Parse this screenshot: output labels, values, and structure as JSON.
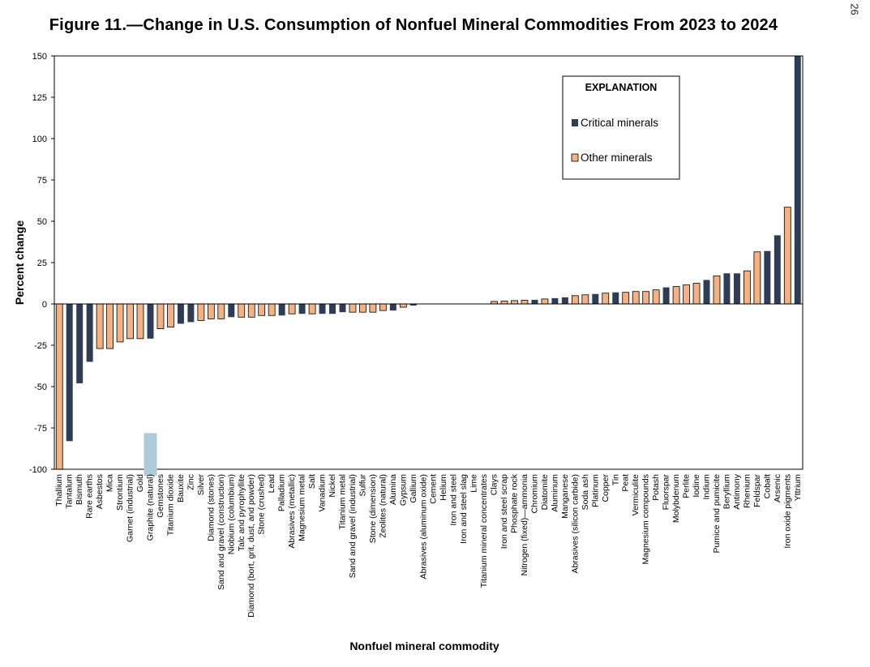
{
  "page_number": "26",
  "chart_data": {
    "type": "bar",
    "title": "Figure 11.—Change in U.S. Consumption of Nonfuel Mineral Commodities From 2023 to 2024",
    "xlabel": "Nonfuel mineral commodity",
    "ylabel": "Percent change",
    "ylim": [
      -100,
      150
    ],
    "yticks": [
      150,
      125,
      100,
      75,
      50,
      25,
      0,
      -25,
      -50,
      -75,
      -100
    ],
    "ytick_labels": [
      "150",
      "125",
      "100",
      "75",
      "50",
      "25",
      "0",
      "-25",
      "-50",
      "-75",
      "-100"
    ],
    "grid": false,
    "legend": {
      "title": "EXPLANATION",
      "placement": "top-right",
      "entries": [
        {
          "label": "Critical minerals",
          "group": "critical"
        },
        {
          "label": "Other minerals",
          "group": "other"
        }
      ]
    },
    "colors": {
      "critical": "#2e3d55",
      "other": "#f4b183",
      "other_edge": "#000000",
      "highlight": "#aecbd9"
    },
    "highlighted_category": "Graphite (natural)",
    "highlighted_text": "Graphite",
    "categories": [
      {
        "name": "Thallium",
        "value": -100,
        "group": "other"
      },
      {
        "name": "Tantalum",
        "value": -83,
        "group": "critical"
      },
      {
        "name": "Bismuth",
        "value": -48,
        "group": "critical"
      },
      {
        "name": "Rare earths",
        "value": -35,
        "group": "critical"
      },
      {
        "name": "Asbestos",
        "value": -27,
        "group": "other"
      },
      {
        "name": "Mica",
        "value": -27,
        "group": "other"
      },
      {
        "name": "Strontium",
        "value": -23,
        "group": "other"
      },
      {
        "name": "Garnet (industrial)",
        "value": -21,
        "group": "other"
      },
      {
        "name": "Gold",
        "value": -21,
        "group": "other"
      },
      {
        "name": "Graphite (natural)",
        "value": -21,
        "group": "critical"
      },
      {
        "name": "Gemstones",
        "value": -15,
        "group": "other"
      },
      {
        "name": "Titanium dioxide",
        "value": -14,
        "group": "other"
      },
      {
        "name": "Bauxite",
        "value": -12,
        "group": "critical"
      },
      {
        "name": "Zinc",
        "value": -11,
        "group": "critical"
      },
      {
        "name": "Silver",
        "value": -10,
        "group": "other"
      },
      {
        "name": "Diamond (stones)",
        "value": -9,
        "group": "other"
      },
      {
        "name": "Sand and gravel (construction)",
        "value": -9,
        "group": "other"
      },
      {
        "name": "Niobium (columbium)",
        "value": -8,
        "group": "critical"
      },
      {
        "name": "Talc and pyrophyllite",
        "value": -8,
        "group": "other"
      },
      {
        "name": "Diamond (bort, grit, dust, and powder)",
        "value": -8,
        "group": "other"
      },
      {
        "name": "Stone (crushed)",
        "value": -7,
        "group": "other"
      },
      {
        "name": "Lead",
        "value": -7,
        "group": "other"
      },
      {
        "name": "Palladium",
        "value": -7,
        "group": "critical"
      },
      {
        "name": "Abrasives (metallic)",
        "value": -6,
        "group": "other"
      },
      {
        "name": "Magnesium metal",
        "value": -6,
        "group": "critical"
      },
      {
        "name": "Salt",
        "value": -6,
        "group": "other"
      },
      {
        "name": "Vanadium",
        "value": -6,
        "group": "critical"
      },
      {
        "name": "Nickel",
        "value": -6,
        "group": "critical"
      },
      {
        "name": "Titanium metal",
        "value": -5,
        "group": "critical"
      },
      {
        "name": "Sand and gravel (industrial)",
        "value": -5,
        "group": "other"
      },
      {
        "name": "Sulfur",
        "value": -5,
        "group": "other"
      },
      {
        "name": "Stone (dimension)",
        "value": -5,
        "group": "other"
      },
      {
        "name": "Zeolites (natural)",
        "value": -4,
        "group": "other"
      },
      {
        "name": "Alumina",
        "value": -4,
        "group": "critical"
      },
      {
        "name": "Gypsum",
        "value": -2,
        "group": "other"
      },
      {
        "name": "Gallium",
        "value": -1,
        "group": "critical"
      },
      {
        "name": "Abrasives (aluminum oxide)",
        "value": 0,
        "group": "other"
      },
      {
        "name": "Cement",
        "value": 0,
        "group": "other"
      },
      {
        "name": "Helium",
        "value": 0,
        "group": "other"
      },
      {
        "name": "Iron and steel",
        "value": 0,
        "group": "other"
      },
      {
        "name": "Iron and steel slag",
        "value": 0,
        "group": "other"
      },
      {
        "name": "Lime",
        "value": 0,
        "group": "other"
      },
      {
        "name": "Titanium mineral concentrates",
        "value": 0,
        "group": "critical"
      },
      {
        "name": "Clays",
        "value": 1.5,
        "group": "other"
      },
      {
        "name": "Iron and steel scrap",
        "value": 1.7,
        "group": "other"
      },
      {
        "name": "Phosphate rock",
        "value": 2,
        "group": "other"
      },
      {
        "name": "Nitrogen (fixed)—ammonia",
        "value": 2.2,
        "group": "other"
      },
      {
        "name": "Chromium",
        "value": 2.5,
        "group": "critical"
      },
      {
        "name": "Diatomite",
        "value": 3,
        "group": "other"
      },
      {
        "name": "Aluminum",
        "value": 3.5,
        "group": "critical"
      },
      {
        "name": "Manganese",
        "value": 4,
        "group": "critical"
      },
      {
        "name": "Abrasives (silicon carbide)",
        "value": 5,
        "group": "other"
      },
      {
        "name": "Soda ash",
        "value": 5.5,
        "group": "other"
      },
      {
        "name": "Platinum",
        "value": 6,
        "group": "critical"
      },
      {
        "name": "Copper",
        "value": 6.5,
        "group": "other"
      },
      {
        "name": "Tin",
        "value": 7,
        "group": "critical"
      },
      {
        "name": "Peat",
        "value": 7,
        "group": "other"
      },
      {
        "name": "Vermiculite",
        "value": 7.5,
        "group": "other"
      },
      {
        "name": "Magnesium compounds",
        "value": 7.5,
        "group": "other"
      },
      {
        "name": "Potash",
        "value": 8.5,
        "group": "other"
      },
      {
        "name": "Fluorspar",
        "value": 10,
        "group": "critical"
      },
      {
        "name": "Molybdenum",
        "value": 10.5,
        "group": "other"
      },
      {
        "name": "Perlite",
        "value": 11.5,
        "group": "other"
      },
      {
        "name": "Iodine",
        "value": 12.5,
        "group": "other"
      },
      {
        "name": "Indium",
        "value": 14.5,
        "group": "critical"
      },
      {
        "name": "Pumice and pumicite",
        "value": 17,
        "group": "other"
      },
      {
        "name": "Beryllium",
        "value": 18.5,
        "group": "critical"
      },
      {
        "name": "Antimony",
        "value": 18.5,
        "group": "critical"
      },
      {
        "name": "Rhenium",
        "value": 20,
        "group": "other"
      },
      {
        "name": "Feldspar",
        "value": 31.5,
        "group": "other"
      },
      {
        "name": "Cobalt",
        "value": 32,
        "group": "critical"
      },
      {
        "name": "Arsenic",
        "value": 41.5,
        "group": "critical"
      },
      {
        "name": "Iron oxide pigments",
        "value": 58.5,
        "group": "other"
      },
      {
        "name": "Yttrium",
        "value": 150,
        "group": "critical"
      }
    ]
  }
}
